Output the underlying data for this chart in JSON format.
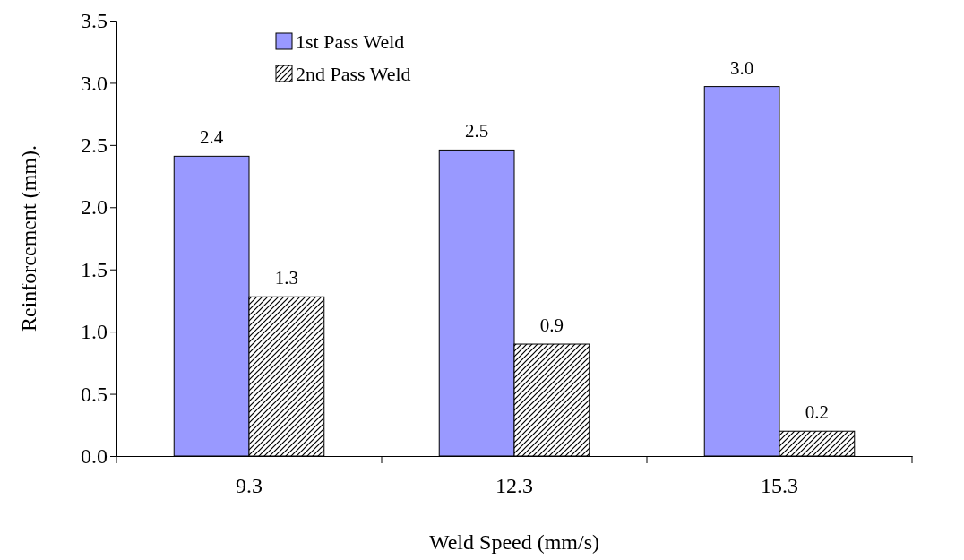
{
  "chart_data": {
    "type": "bar",
    "xlabel": "Weld Speed (mm/s)",
    "ylabel": "Reinforcement (mm).",
    "categories": [
      "9.3",
      "12.3",
      "15.3"
    ],
    "series": [
      {
        "name": "1st Pass Weld",
        "color": "#9999ff",
        "values": [
          2.41,
          2.46,
          2.97
        ],
        "value_labels": [
          "2.4",
          "2.5",
          "3.0"
        ]
      },
      {
        "name": "2nd Pass Weld",
        "color": "#000000",
        "values": [
          1.28,
          0.9,
          0.2
        ],
        "value_labels": [
          "1.3",
          "0.9",
          "0.2"
        ]
      }
    ],
    "ylim": [
      0,
      3.5
    ],
    "yticks": [
      {
        "value": 0,
        "label": "0.0"
      },
      {
        "value": 0.5,
        "label": "0.5"
      },
      {
        "value": 1,
        "label": "1.0"
      },
      {
        "value": 1.5,
        "label": "1.5"
      },
      {
        "value": 2,
        "label": "2.0"
      },
      {
        "value": 2.5,
        "label": "2.5"
      },
      {
        "value": 3,
        "label": "3.0"
      },
      {
        "value": 3.5,
        "label": "3.5"
      }
    ],
    "grid": false,
    "legend": "top"
  }
}
